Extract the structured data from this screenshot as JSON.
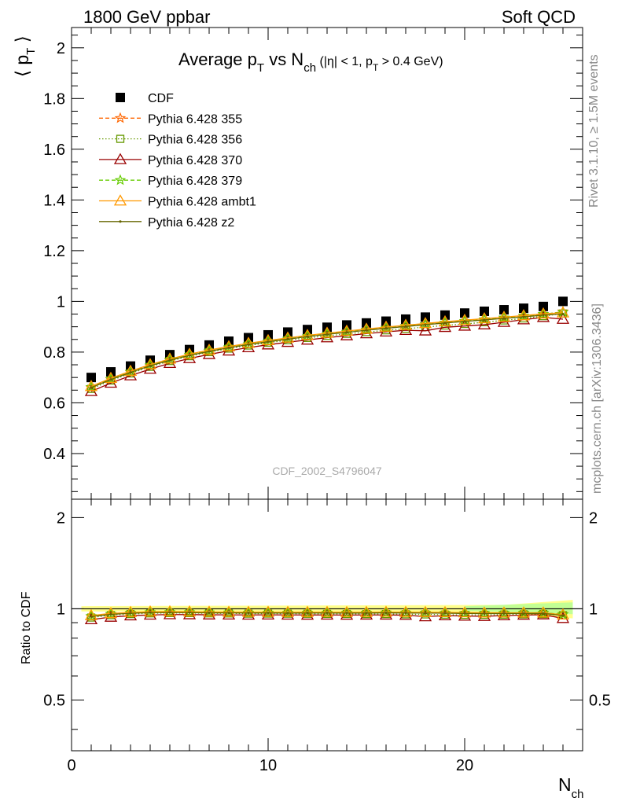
{
  "header": {
    "left": "1800 GeV ppbar",
    "right": "Soft QCD"
  },
  "side_labels": {
    "rivet": "Rivet 3.1.10, ≥ 1.5M events",
    "mcplots": "mcplots.cern.ch [arXiv:1306.3436]"
  },
  "chart_data": [
    {
      "type": "scatter",
      "panel": "main",
      "title": {
        "main": "Average p",
        "sub_T": "T",
        "mid": " vs N",
        "sub_ch": "ch",
        "cuts_a": " (|η| < 1, p",
        "cuts_sub": "T",
        "cuts_b": " > 0.4 GeV)"
      },
      "ylabel": {
        "a": "⟨ p",
        "sub": "T",
        "b": " ⟩"
      },
      "xlabel": {
        "a": "N",
        "sub": "ch"
      },
      "xlim": [
        0,
        26
      ],
      "ylim": [
        0.22,
        2.08
      ],
      "yticks": [
        0.4,
        0.6,
        0.8,
        1,
        1.2,
        1.4,
        1.6,
        1.8,
        2
      ],
      "ytick_labels": [
        "0.4",
        "0.6",
        "0.8",
        "1",
        "1.2",
        "1.4",
        "1.6",
        "1.8",
        "2"
      ],
      "legend_position": "top-left",
      "watermark": "CDF_2002_S4796047",
      "x": [
        1,
        2,
        3,
        4,
        5,
        6,
        7,
        8,
        9,
        10,
        11,
        12,
        13,
        14,
        15,
        16,
        17,
        18,
        19,
        20,
        21,
        22,
        23,
        24,
        25
      ],
      "series": [
        {
          "name": "CDF",
          "color": "#000000",
          "marker": "square",
          "values": [
            0.7,
            0.722,
            0.745,
            0.768,
            0.79,
            0.81,
            0.828,
            0.843,
            0.857,
            0.868,
            0.879,
            0.889,
            0.898,
            0.907,
            0.915,
            0.922,
            0.93,
            0.938,
            0.946,
            0.954,
            0.961,
            0.967,
            0.973,
            0.98,
            1.0
          ]
        },
        {
          "name": "Pythia 6.428 355",
          "color": "#ff6600",
          "marker": "star",
          "dash": "5,3",
          "values": [
            0.66,
            0.692,
            0.72,
            0.746,
            0.768,
            0.787,
            0.803,
            0.817,
            0.83,
            0.841,
            0.852,
            0.862,
            0.871,
            0.88,
            0.888,
            0.896,
            0.903,
            0.91,
            0.916,
            0.922,
            0.928,
            0.934,
            0.94,
            0.948,
            0.96
          ]
        },
        {
          "name": "Pythia 6.428 356",
          "color": "#669900",
          "marker": "open-square",
          "dash": "1.5,2.5",
          "values": [
            0.655,
            0.688,
            0.716,
            0.742,
            0.765,
            0.784,
            0.8,
            0.814,
            0.826,
            0.837,
            0.847,
            0.856,
            0.864,
            0.872,
            0.879,
            0.886,
            0.892,
            0.899,
            0.905,
            0.911,
            0.918,
            0.925,
            0.933,
            0.942,
            0.952
          ]
        },
        {
          "name": "Pythia 6.428 370",
          "color": "#990000",
          "marker": "open-triangle",
          "dash": "",
          "values": [
            0.645,
            0.678,
            0.707,
            0.733,
            0.756,
            0.775,
            0.791,
            0.805,
            0.818,
            0.829,
            0.839,
            0.848,
            0.857,
            0.865,
            0.873,
            0.88,
            0.886,
            0.884,
            0.898,
            0.903,
            0.908,
            0.918,
            0.928,
            0.937,
            0.93
          ]
        },
        {
          "name": "Pythia 6.428 379",
          "color": "#66cc00",
          "marker": "star",
          "dash": "5,3",
          "values": [
            0.662,
            0.694,
            0.722,
            0.748,
            0.77,
            0.789,
            0.805,
            0.819,
            0.831,
            0.842,
            0.852,
            0.862,
            0.871,
            0.879,
            0.887,
            0.895,
            0.902,
            0.909,
            0.916,
            0.922,
            0.929,
            0.936,
            0.943,
            0.95,
            0.958
          ]
        },
        {
          "name": "Pythia 6.428 ambt1",
          "color": "#ff9900",
          "marker": "open-triangle",
          "dash": "",
          "values": [
            0.665,
            0.697,
            0.725,
            0.751,
            0.773,
            0.792,
            0.808,
            0.822,
            0.835,
            0.846,
            0.856,
            0.866,
            0.875,
            0.883,
            0.891,
            0.899,
            0.906,
            0.913,
            0.92,
            0.926,
            0.932,
            0.938,
            0.944,
            0.951,
            0.955
          ]
        },
        {
          "name": "Pythia 6.428 z2",
          "color": "#666600",
          "marker": "dot",
          "dash": "",
          "values": [
            0.66,
            0.692,
            0.72,
            0.746,
            0.768,
            0.787,
            0.803,
            0.817,
            0.83,
            0.841,
            0.851,
            0.861,
            0.87,
            0.878,
            0.886,
            0.894,
            0.901,
            0.908,
            0.915,
            0.921,
            0.927,
            0.933,
            0.939,
            0.946,
            0.95
          ]
        }
      ]
    },
    {
      "type": "scatter",
      "panel": "ratio",
      "ylabel": "Ratio to CDF",
      "xlim": [
        0,
        26
      ],
      "ylim": [
        0.34,
        2.3
      ],
      "yscale": "log",
      "yticks": [
        0.5,
        1,
        2
      ],
      "ytick_labels": [
        "0.5",
        "1",
        "2"
      ],
      "xticks": [
        0,
        10,
        20
      ],
      "xtick_labels": [
        "0",
        "10",
        "20"
      ],
      "band_color": "#ffff66",
      "band_color_alt": "#99ff99"
    }
  ]
}
